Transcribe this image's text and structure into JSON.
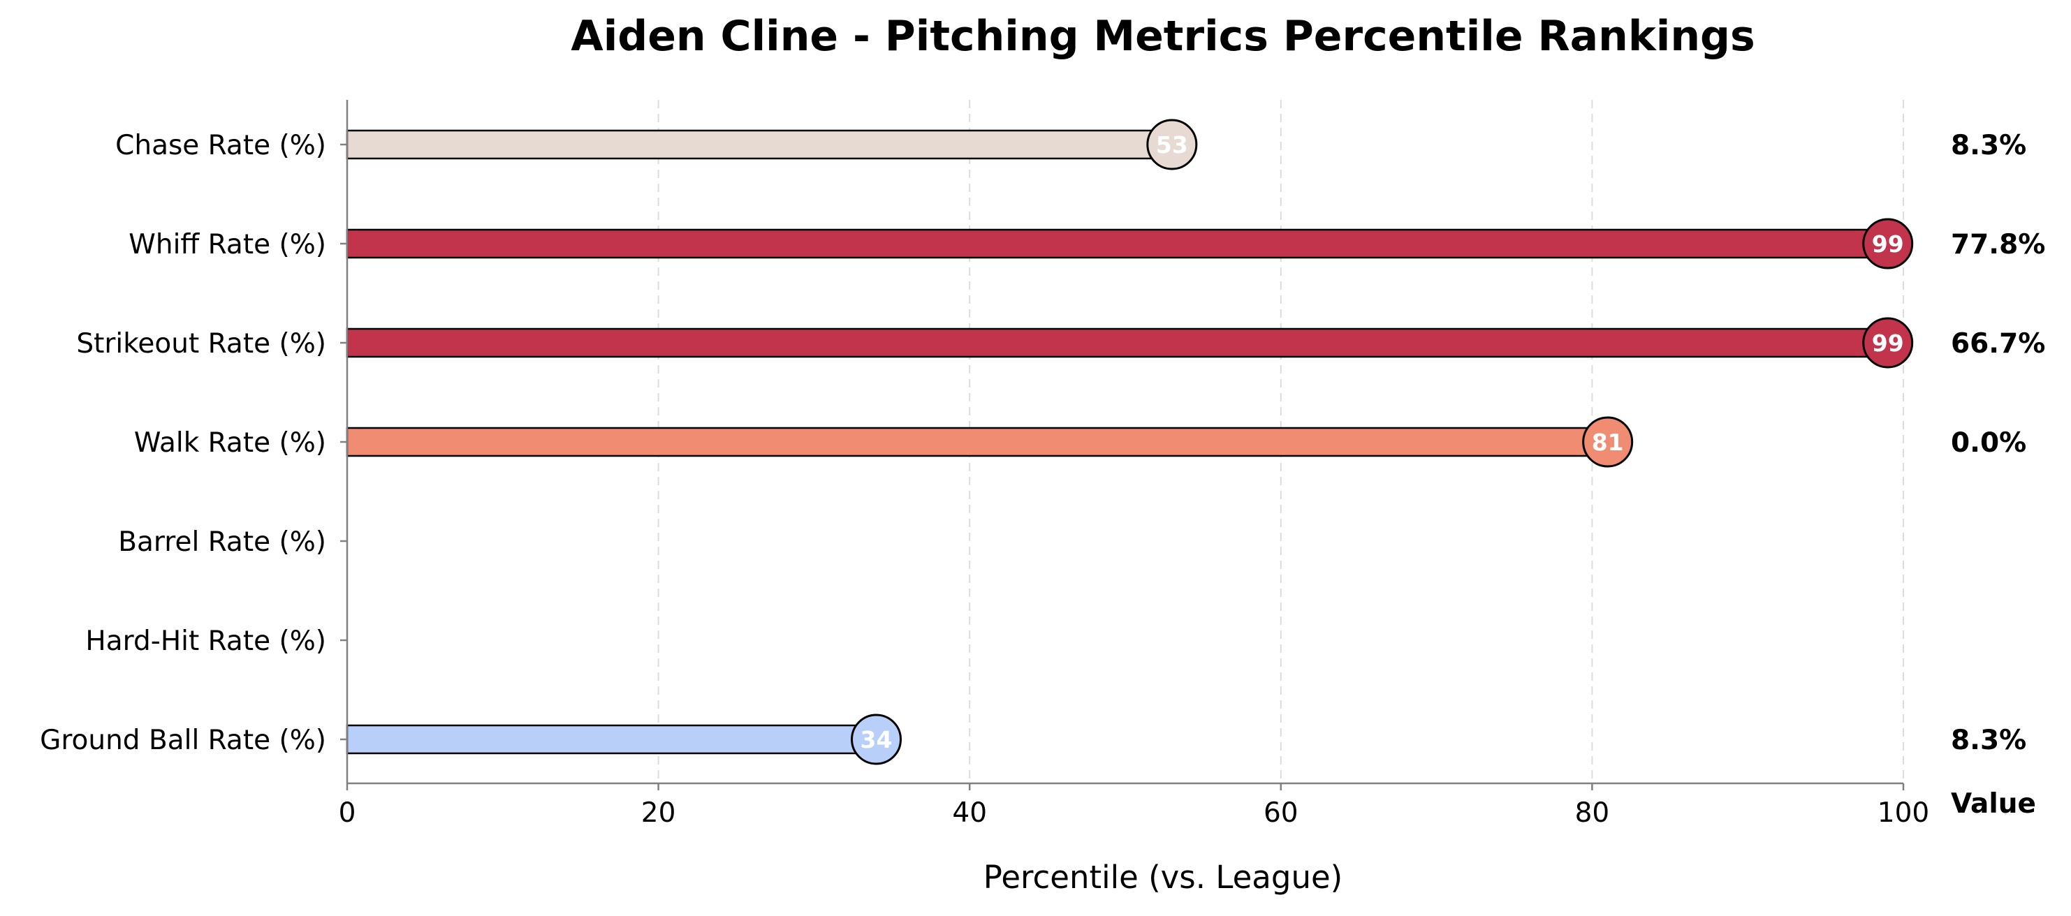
{
  "chart_data": {
    "type": "bar",
    "orientation": "horizontal",
    "title": "Aiden Cline - Pitching Metrics Percentile Rankings",
    "xlabel": "Percentile (vs. League)",
    "ylabel": "",
    "xlim": [
      0,
      100
    ],
    "xticks": [
      0,
      20,
      40,
      60,
      80,
      100
    ],
    "grid": "vertical dashed",
    "value_column_header": "Value",
    "categories": [
      "Chase Rate (%)",
      "Whiff Rate (%)",
      "Strikeout Rate (%)",
      "Walk Rate (%)",
      "Barrel Rate (%)",
      "Hard-Hit Rate (%)",
      "Ground Ball Rate (%)"
    ],
    "percentiles": [
      53,
      99,
      99,
      81,
      null,
      null,
      34
    ],
    "percentile_labels": [
      "53",
      "99",
      "99",
      "81",
      "",
      "",
      "34"
    ],
    "values": [
      "8.3%",
      "77.8%",
      "66.7%",
      "0.0%",
      "",
      "",
      "8.3%"
    ],
    "colors": [
      "#e6dad3",
      "#c1344b",
      "#c1344b",
      "#ef8c72",
      "",
      "",
      "#b7cff9"
    ]
  }
}
